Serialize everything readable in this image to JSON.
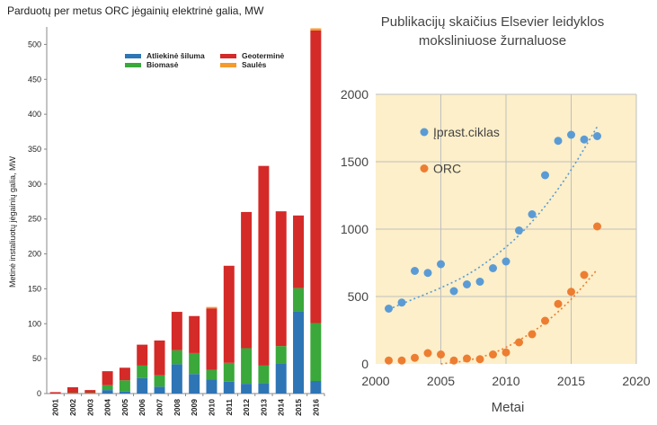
{
  "chart_data": [
    {
      "type": "bar",
      "stacked": true,
      "title": "Parduotų per metus ORC jėgainių elektrinė galia, MW",
      "ylabel": "Metinė instaliuotų jėgainių galia, MW",
      "xlabel": "",
      "ylim": [
        0,
        525
      ],
      "yticks": [
        0,
        50,
        100,
        150,
        200,
        250,
        300,
        350,
        400,
        450,
        500
      ],
      "grid": false,
      "legend_placement": "top",
      "categories": [
        "2001",
        "2002",
        "2003",
        "2004",
        "2005",
        "2006",
        "2007",
        "2008",
        "2009",
        "2010",
        "2011",
        "2012",
        "2013",
        "2014",
        "2015",
        "2016"
      ],
      "series": [
        {
          "name": "Atliekinė šiluma",
          "color": "#2e75b6",
          "values": [
            0,
            0,
            0,
            5,
            3,
            22,
            10,
            42,
            28,
            20,
            17,
            14,
            15,
            43,
            118,
            18
          ]
        },
        {
          "name": "Biomasė",
          "color": "#3aa83a",
          "values": [
            0,
            1,
            1,
            7,
            16,
            18,
            16,
            20,
            30,
            14,
            27,
            51,
            25,
            25,
            33,
            83
          ]
        },
        {
          "name": "Geotermine",
          "label": "Geotermine",
          "color": "#d42a28",
          "values": [
            2,
            8,
            4,
            20,
            18,
            30,
            50,
            55,
            53,
            88,
            139,
            195,
            286,
            193,
            104,
            419
          ]
        },
        {
          "name": "Saulės",
          "color": "#f59a2c",
          "values": [
            0,
            0,
            0,
            0,
            0,
            0,
            0,
            0,
            0,
            2,
            0,
            0,
            0,
            0,
            0,
            3
          ]
        }
      ],
      "legend_labels": [
        "Atliekinė šiluma",
        "Geoterminė",
        "Biomasė",
        "Saulės"
      ]
    },
    {
      "type": "scatter",
      "title": "Publikacijų skaičius Elsevier leidyklos moksliniuose žurnaluose",
      "title_lines": [
        "Publikacijų skaičius Elsevier leidyklos",
        "moksliniuose žurnaluose"
      ],
      "xlabel": "Metai",
      "ylabel": "",
      "xlim": [
        2000,
        2020
      ],
      "ylim": [
        0,
        2000
      ],
      "xticks": [
        2000,
        2005,
        2010,
        2015,
        2020
      ],
      "yticks": [
        0,
        500,
        1000,
        1500,
        2000
      ],
      "grid": true,
      "background": "#fcefc9",
      "legend_placement": "top-left",
      "series": [
        {
          "name": "Įprast.ciklas",
          "color": "#5b9bd5",
          "x": [
            2001,
            2002,
            2003,
            2004,
            2005,
            2006,
            2007,
            2008,
            2009,
            2010,
            2011,
            2012,
            2013,
            2014,
            2015,
            2016,
            2017
          ],
          "y": [
            410,
            455,
            690,
            675,
            740,
            540,
            590,
            610,
            710,
            760,
            990,
            1110,
            1400,
            1655,
            1700,
            1665,
            1690
          ],
          "trend_x": [
            2001,
            2003,
            2005,
            2007,
            2009,
            2011,
            2013,
            2015,
            2017
          ],
          "trend_y": [
            405,
            485,
            565,
            660,
            790,
            955,
            1170,
            1440,
            1760
          ]
        },
        {
          "name": "ORC",
          "color": "#ed7d31",
          "x": [
            2001,
            2002,
            2003,
            2004,
            2005,
            2006,
            2007,
            2008,
            2009,
            2010,
            2011,
            2012,
            2013,
            2014,
            2015,
            2016,
            2017
          ],
          "y": [
            25,
            25,
            45,
            80,
            70,
            25,
            40,
            35,
            70,
            85,
            160,
            220,
            320,
            445,
            535,
            660,
            1020
          ],
          "trend_x": [
            2005,
            2007,
            2009,
            2011,
            2013,
            2015,
            2017
          ],
          "trend_y": [
            0,
            25,
            80,
            175,
            305,
            480,
            700
          ]
        }
      ]
    }
  ]
}
